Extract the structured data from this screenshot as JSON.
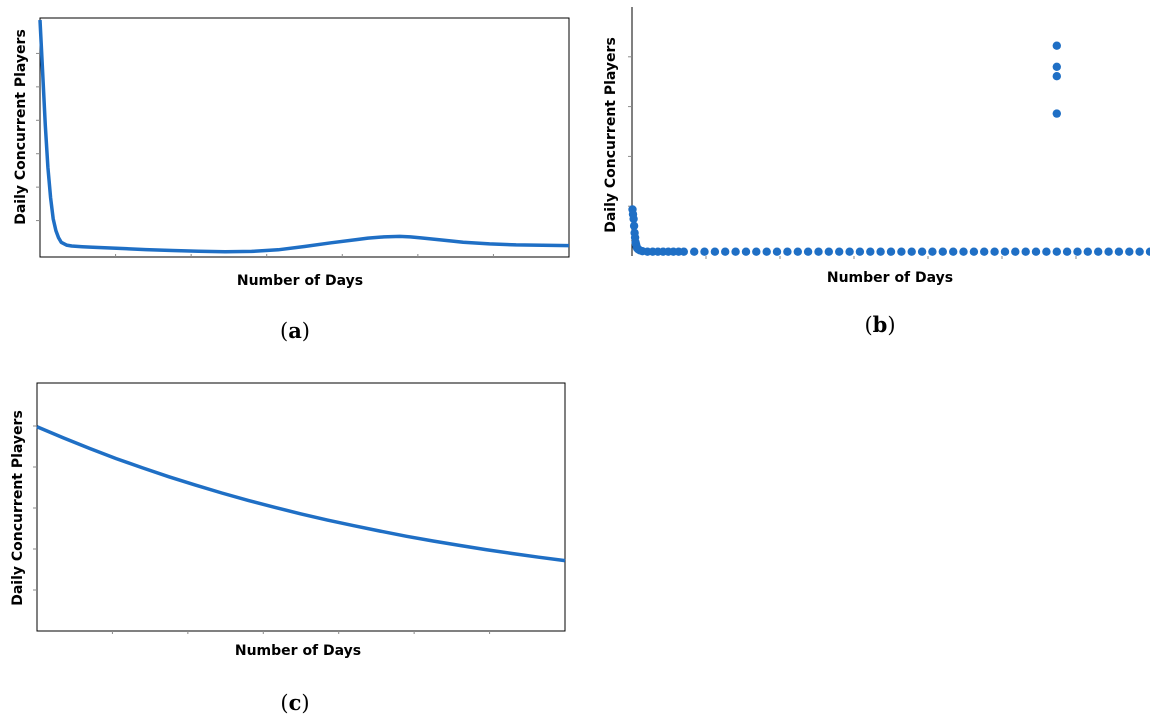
{
  "colors": {
    "series": "#1f6fc5",
    "axis": "#000000",
    "tick": "#8a8a8a"
  },
  "chart_data": [
    {
      "panel": "a",
      "caption_letter": "a",
      "type": "line",
      "xlabel": "Number of Days",
      "ylabel": "Daily Concurrent Players",
      "xlim": [
        0,
        100
      ],
      "ylim": [
        0,
        100
      ],
      "grid": false,
      "x": [
        0,
        0.5,
        1,
        1.5,
        2,
        2.5,
        3,
        3.5,
        4,
        5,
        6,
        8,
        10,
        15,
        20,
        25,
        30,
        35,
        40,
        45,
        50,
        55,
        60,
        62,
        65,
        68,
        70,
        72,
        75,
        78,
        80,
        85,
        90,
        95,
        100
      ],
      "values": [
        100,
        78,
        55,
        37,
        24,
        15,
        10,
        7,
        5,
        3.8,
        3.4,
        3.1,
        2.9,
        2.4,
        1.9,
        1.5,
        1.2,
        1.0,
        1.1,
        1.8,
        3.2,
        4.8,
        6.2,
        6.8,
        7.3,
        7.5,
        7.3,
        6.9,
        6.2,
        5.5,
        5.0,
        4.3,
        3.9,
        3.7,
        3.6
      ]
    },
    {
      "panel": "b",
      "caption_letter": "b",
      "type": "scatter",
      "xlabel": "Number of Days",
      "ylabel": "Daily Concurrent Players",
      "xlim": [
        0,
        100
      ],
      "ylim": [
        0,
        100
      ],
      "grid": false,
      "points": [
        [
          0.1,
          19
        ],
        [
          0.2,
          17
        ],
        [
          0.3,
          15
        ],
        [
          0.4,
          12
        ],
        [
          0.5,
          9
        ],
        [
          0.6,
          7
        ],
        [
          0.7,
          5
        ],
        [
          0.8,
          4
        ],
        [
          0.9,
          3
        ],
        [
          1.0,
          2.5
        ],
        [
          1.2,
          2
        ],
        [
          1.5,
          1.6
        ],
        [
          2,
          1.2
        ],
        [
          3,
          1
        ],
        [
          4,
          1
        ],
        [
          5,
          1
        ],
        [
          6,
          1
        ],
        [
          7,
          1
        ],
        [
          8,
          1
        ],
        [
          9,
          1
        ],
        [
          10,
          1
        ],
        [
          12,
          1
        ],
        [
          14,
          1
        ],
        [
          16,
          1
        ],
        [
          18,
          1
        ],
        [
          20,
          1
        ],
        [
          22,
          1
        ],
        [
          24,
          1
        ],
        [
          26,
          1
        ],
        [
          28,
          1
        ],
        [
          30,
          1
        ],
        [
          32,
          1
        ],
        [
          34,
          1
        ],
        [
          36,
          1
        ],
        [
          38,
          1
        ],
        [
          40,
          1
        ],
        [
          42,
          1
        ],
        [
          44,
          1
        ],
        [
          46,
          1
        ],
        [
          48,
          1
        ],
        [
          50,
          1
        ],
        [
          52,
          1
        ],
        [
          54,
          1
        ],
        [
          56,
          1
        ],
        [
          58,
          1
        ],
        [
          60,
          1
        ],
        [
          62,
          1
        ],
        [
          64,
          1
        ],
        [
          66,
          1
        ],
        [
          68,
          1
        ],
        [
          70,
          1
        ],
        [
          72,
          1
        ],
        [
          74,
          1
        ],
        [
          76,
          1
        ],
        [
          78,
          1
        ],
        [
          80,
          1
        ],
        [
          82,
          1
        ],
        [
          84,
          1
        ],
        [
          86,
          1
        ],
        [
          88,
          1
        ],
        [
          90,
          1
        ],
        [
          92,
          1
        ],
        [
          94,
          1
        ],
        [
          96,
          1
        ],
        [
          98,
          1
        ],
        [
          100,
          1
        ],
        [
          82,
          89
        ],
        [
          82,
          80
        ],
        [
          82,
          76
        ],
        [
          82,
          60
        ]
      ]
    },
    {
      "panel": "c",
      "caption_letter": "c",
      "type": "line",
      "xlabel": "Number of Days",
      "ylabel": "Daily Concurrent Players",
      "xlim": [
        0,
        100
      ],
      "ylim": [
        0,
        100
      ],
      "grid": false,
      "x": [
        0,
        5,
        10,
        15,
        20,
        25,
        30,
        35,
        40,
        45,
        50,
        55,
        60,
        65,
        70,
        75,
        80,
        85,
        90,
        95,
        100
      ],
      "values": [
        83,
        78.5,
        74.2,
        70.1,
        66.3,
        62.7,
        59.3,
        56.1,
        53.1,
        50.3,
        47.6,
        45.1,
        42.8,
        40.6,
        38.5,
        36.6,
        34.8,
        33.1,
        31.5,
        30,
        28.6
      ]
    }
  ]
}
